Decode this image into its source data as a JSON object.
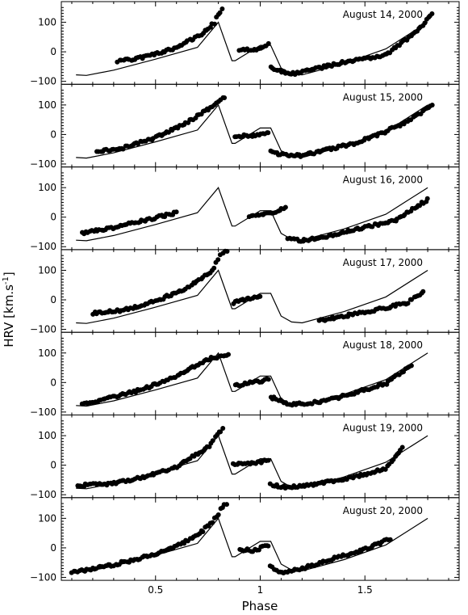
{
  "chart_data": {
    "type": "scatter",
    "xlabel": "Phase",
    "ylabel": "HRV [km.s",
    "ylabel_sup": "-1",
    "ylabel_end": "]",
    "xlim": [
      0.05,
      1.95
    ],
    "ylim": [
      -110,
      170
    ],
    "x_ticks": [
      0.5,
      1,
      1.5
    ],
    "x_tick_labels": [
      "0.5",
      "1",
      "1.5"
    ],
    "y_ticks": [
      -100,
      0,
      100
    ],
    "y_tick_labels": [
      "−100",
      "0",
      "100"
    ],
    "model_curve": {
      "x": [
        0.12,
        0.17,
        0.3,
        0.5,
        0.7,
        0.8,
        0.865,
        0.88,
        1.0,
        1.05,
        1.1,
        1.15,
        1.2,
        1.4,
        1.6,
        1.8
      ],
      "y": [
        -78,
        -80,
        -62,
        -25,
        15,
        100,
        -30,
        -30,
        22,
        22,
        -55,
        -75,
        -78,
        -40,
        10,
        100
      ]
    },
    "panels": [
      {
        "date": "August 14, 2000",
        "segments": [
          {
            "x": [
              0.32,
              0.45,
              0.6,
              0.72,
              0.78
            ],
            "y": [
              -32,
              -18,
              15,
              60,
              98
            ]
          },
          {
            "x": [
              0.79,
              0.82
            ],
            "y": [
              115,
              145
            ]
          },
          {
            "x": [
              0.9,
              1.0,
              1.04
            ],
            "y": [
              8,
              10,
              28
            ]
          },
          {
            "x": [
              1.05,
              1.1,
              1.15,
              1.25,
              1.4,
              1.6,
              1.75,
              1.82
            ],
            "y": [
              -55,
              -65,
              -75,
              -60,
              -35,
              -10,
              70,
              125
            ]
          }
        ]
      },
      {
        "date": "August 15, 2000",
        "segments": [
          {
            "x": [
              0.22,
              0.35,
              0.5,
              0.65,
              0.78
            ],
            "y": [
              -60,
              -45,
              -10,
              40,
              100
            ]
          },
          {
            "x": [
              0.79,
              0.81,
              0.83
            ],
            "y": [
              110,
              120,
              128
            ]
          },
          {
            "x": [
              0.88,
              0.97,
              1.04
            ],
            "y": [
              -5,
              -5,
              10
            ]
          },
          {
            "x": [
              1.05,
              1.1,
              1.2,
              1.3,
              1.45,
              1.6,
              1.72,
              1.82
            ],
            "y": [
              -58,
              -68,
              -72,
              -55,
              -30,
              10,
              50,
              100
            ]
          }
        ]
      },
      {
        "date": "August 16, 2000",
        "segments": [
          {
            "x": [
              0.15,
              0.3,
              0.45,
              0.6
            ],
            "y": [
              -55,
              -35,
              -10,
              15
            ]
          },
          {
            "x": [
              0.95,
              1.05,
              1.12
            ],
            "y": [
              0,
              15,
              30
            ]
          },
          {
            "x": [
              1.13,
              1.2,
              1.35,
              1.5,
              1.65,
              1.8
            ],
            "y": [
              -75,
              -80,
              -60,
              -35,
              -10,
              60
            ]
          }
        ]
      },
      {
        "date": "August 17, 2000",
        "segments": [
          {
            "x": [
              0.2,
              0.35,
              0.5,
              0.65,
              0.78
            ],
            "y": [
              -45,
              -35,
              -5,
              40,
              105
            ]
          },
          {
            "x": [
              0.79,
              0.81,
              0.84
            ],
            "y": [
              130,
              150,
              165
            ]
          },
          {
            "x": [
              0.87,
              0.95,
              1.0
            ],
            "y": [
              -10,
              5,
              10
            ]
          },
          {
            "x": [
              1.28,
              1.4,
              1.55,
              1.7,
              1.78
            ],
            "y": [
              -70,
              -55,
              -35,
              -10,
              25
            ]
          }
        ]
      },
      {
        "date": "August 18, 2000",
        "segments": [
          {
            "x": [
              0.15,
              0.3,
              0.45,
              0.6,
              0.75,
              0.85
            ],
            "y": [
              -72,
              -50,
              -20,
              20,
              80,
              95
            ]
          },
          {
            "x": [
              0.88,
              1.0,
              1.04
            ],
            "y": [
              -10,
              5,
              10
            ]
          },
          {
            "x": [
              1.05,
              1.15,
              1.3,
              1.45,
              1.6,
              1.72
            ],
            "y": [
              -50,
              -75,
              -65,
              -35,
              -5,
              60
            ]
          }
        ]
      },
      {
        "date": "August 19, 2000",
        "segments": [
          {
            "x": [
              0.13,
              0.3,
              0.45,
              0.6,
              0.75,
              0.82
            ],
            "y": [
              -68,
              -62,
              -40,
              -5,
              60,
              125
            ]
          },
          {
            "x": [
              0.87,
              0.95,
              1.04
            ],
            "y": [
              5,
              5,
              15
            ]
          },
          {
            "x": [
              1.05,
              1.12,
              1.25,
              1.45,
              1.6,
              1.68
            ],
            "y": [
              -65,
              -75,
              -65,
              -40,
              -10,
              60
            ]
          }
        ]
      },
      {
        "date": "August 20, 2000",
        "segments": [
          {
            "x": [
              0.1,
              0.25,
              0.4,
              0.55,
              0.7,
              0.8
            ],
            "y": [
              -82,
              -65,
              -40,
              -10,
              40,
              110
            ]
          },
          {
            "x": [
              0.81,
              0.84
            ],
            "y": [
              135,
              150
            ]
          },
          {
            "x": [
              0.9,
              0.97,
              1.04
            ],
            "y": [
              -5,
              -10,
              10
            ]
          },
          {
            "x": [
              1.05,
              1.1,
              1.2,
              1.35,
              1.5,
              1.62
            ],
            "y": [
              -65,
              -85,
              -70,
              -35,
              -5,
              30
            ]
          }
        ]
      }
    ]
  }
}
